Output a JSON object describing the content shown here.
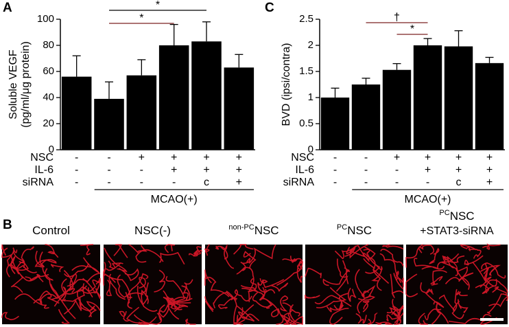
{
  "chart_data": [
    {
      "type": "bar",
      "panel": "A",
      "ylabel": [
        "Soluble VEGF",
        "(pg/ml/μg protein)"
      ],
      "values": [
        56,
        39,
        57,
        80,
        83,
        63
      ],
      "errors": [
        16,
        13,
        12,
        16,
        15,
        10
      ],
      "color": "#000000",
      "ylim": [
        0,
        100
      ],
      "yticks": [
        0,
        20,
        40,
        60,
        80,
        100
      ],
      "conditions": [
        {
          "name": "NSC",
          "values": [
            "-",
            "-",
            "+",
            "+",
            "+",
            "+"
          ]
        },
        {
          "name": "IL-6",
          "values": [
            "-",
            "-",
            "-",
            "+",
            "+",
            "+"
          ]
        },
        {
          "name": "siRNA",
          "values": [
            "-",
            "-",
            "-",
            "-",
            "c",
            "+"
          ]
        }
      ],
      "group_label": "MCAO(+)",
      "annotations": [
        {
          "text": "*",
          "from": 1,
          "to": 4
        },
        {
          "text": "*",
          "from": 1,
          "to": 3
        }
      ]
    },
    {
      "type": "bar",
      "panel": "C",
      "ylabel": [
        "BVD (ipsi/contra)"
      ],
      "values": [
        1.0,
        1.25,
        1.53,
        2.0,
        1.98,
        1.66
      ],
      "errors": [
        0.18,
        0.12,
        0.12,
        0.13,
        0.3,
        0.11
      ],
      "color": "#000000",
      "ylim": [
        0,
        2.5
      ],
      "yticks": [
        0,
        0.5,
        1,
        1.5,
        2,
        2.5
      ],
      "conditions": [
        {
          "name": "NSC",
          "values": [
            "-",
            "-",
            "+",
            "+",
            "+",
            "+"
          ]
        },
        {
          "name": "IL-6",
          "values": [
            "-",
            "-",
            "-",
            "+",
            "+",
            "+"
          ]
        },
        {
          "name": "siRNA",
          "values": [
            "-",
            "-",
            "-",
            "-",
            "c",
            "+"
          ]
        }
      ],
      "group_label": "MCAO(+)",
      "annotations": [
        {
          "text": "†",
          "from": 1,
          "to": 3
        },
        {
          "text": "*",
          "from": 2,
          "to": 3
        }
      ]
    }
  ],
  "panel_b": {
    "panel": "B",
    "images": [
      {
        "text": "Control"
      },
      {
        "text": "NSC(-)"
      },
      {
        "sup": "non-PC",
        "text": "NSC"
      },
      {
        "sup": "PC",
        "text": "NSC"
      },
      {
        "sup": "PC",
        "text": "NSC",
        "line2": "+STAT3-siRNA"
      }
    ]
  }
}
